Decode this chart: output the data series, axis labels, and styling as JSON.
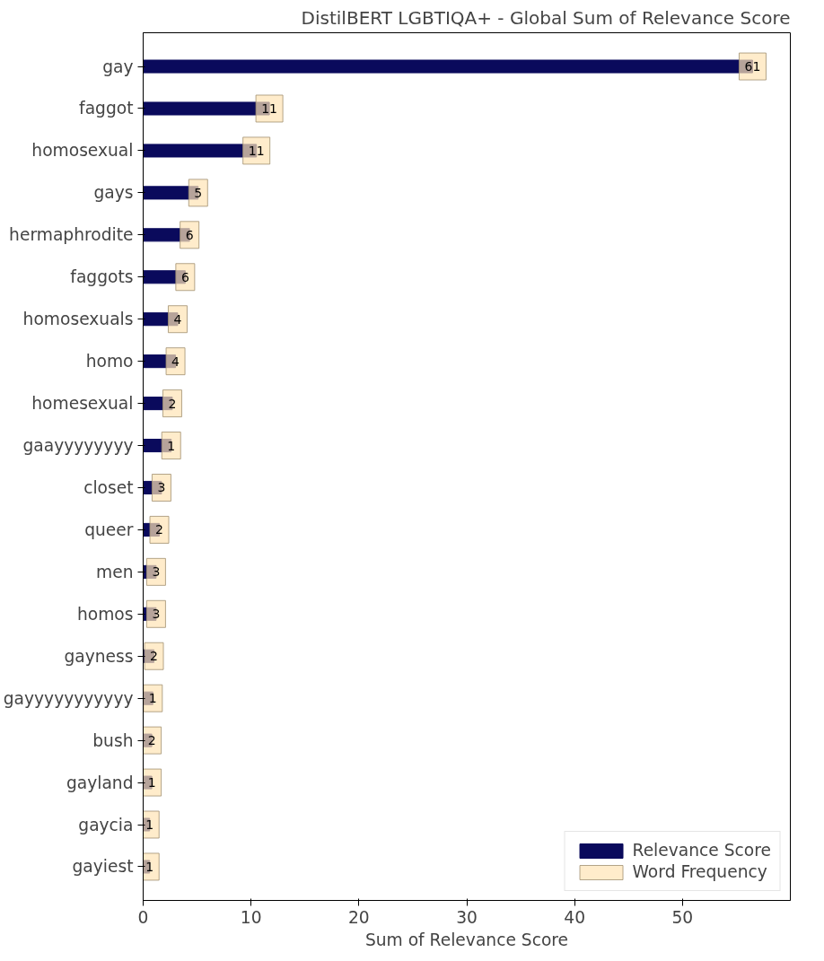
{
  "chart_data": {
    "type": "bar",
    "orientation": "horizontal",
    "title": "DistilBERT LGBTIQA+ - Global Sum of Relevance Score",
    "xlabel": "Sum of Relevance Score",
    "categories": [
      "gay",
      "faggot",
      "homosexual",
      "gays",
      "hermaphrodite",
      "faggots",
      "homosexuals",
      "homo",
      "homesexual",
      "gaayyyyyyyy",
      "closet",
      "queer",
      "men",
      "homos",
      "gayness",
      "gayyyyyyyyyyy",
      "bush",
      "gayland",
      "gaycia",
      "gayiest"
    ],
    "series": [
      {
        "name": "Relevance Score",
        "color": "#0a0a5c",
        "values": [
          56.5,
          11.7,
          10.5,
          5.1,
          4.3,
          3.9,
          3.2,
          3.0,
          2.7,
          2.6,
          1.7,
          1.5,
          1.2,
          1.2,
          1.0,
          0.9,
          0.8,
          0.8,
          0.6,
          0.6
        ]
      },
      {
        "name": "Word Frequency",
        "type": "other",
        "color": "#ffe4b5",
        "values": [
          null,
          null,
          null,
          null,
          null,
          null,
          null,
          null,
          null,
          null,
          null,
          null,
          null,
          null,
          null,
          null,
          null,
          null,
          null,
          null
        ],
        "value_labels": [
          "61",
          "11",
          "11",
          "5",
          "6",
          "6",
          "4",
          "4",
          "2",
          "1",
          "3",
          "2",
          "3",
          "3",
          "2",
          "1",
          "2",
          "1",
          "1",
          "1"
        ]
      }
    ],
    "xlim": [
      0,
      60
    ],
    "xticks": [
      0,
      10,
      20,
      30,
      40,
      50
    ],
    "grid": false,
    "legend": "bottom right"
  }
}
